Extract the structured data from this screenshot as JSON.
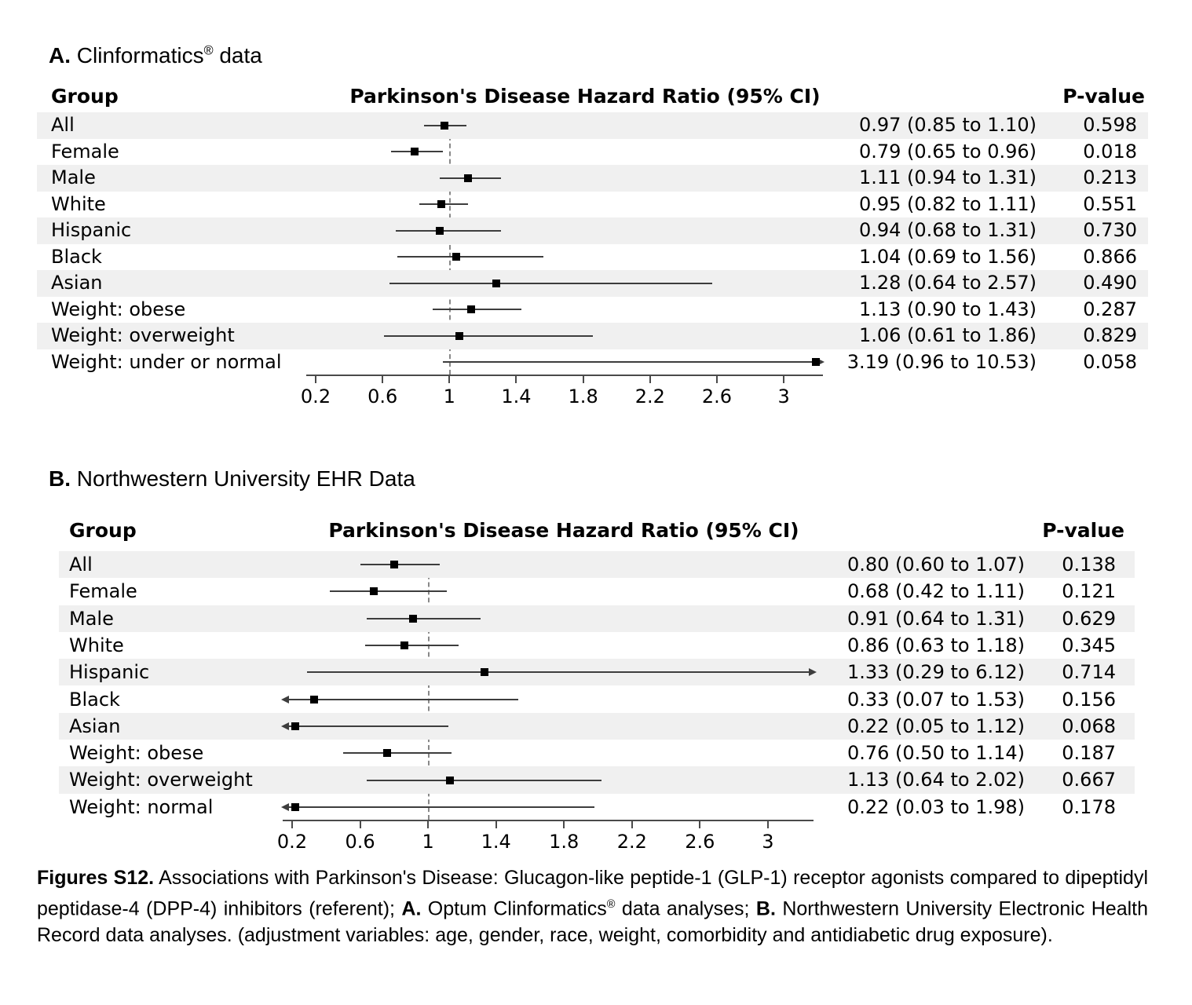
{
  "figure": {
    "panels": [
      {
        "id": "A",
        "title_segments": [
          {
            "t": "A.",
            "b": true
          },
          {
            "t": " Clinformatics",
            "b": false
          },
          {
            "t": "®",
            "b": false,
            "sup": true
          },
          {
            "t": " data",
            "b": false
          }
        ],
        "columns": {
          "group": "Group",
          "hr": "Parkinson's Disease Hazard Ratio (95% CI)",
          "p": "P-value"
        },
        "rows": [
          {
            "group": "All",
            "ci": "0.97 (0.85 to 1.10)",
            "p": "0.598",
            "est": 0.97,
            "lo": 0.85,
            "hi": 1.1
          },
          {
            "group": "Female",
            "ci": "0.79 (0.65 to 0.96)",
            "p": "0.018",
            "est": 0.79,
            "lo": 0.65,
            "hi": 0.96
          },
          {
            "group": "Male",
            "ci": "1.11 (0.94 to 1.31)",
            "p": "0.213",
            "est": 1.11,
            "lo": 0.94,
            "hi": 1.31
          },
          {
            "group": "White",
            "ci": "0.95 (0.82 to 1.11)",
            "p": "0.551",
            "est": 0.95,
            "lo": 0.82,
            "hi": 1.11
          },
          {
            "group": "Hispanic",
            "ci": "0.94 (0.68 to 1.31)",
            "p": "0.730",
            "est": 0.94,
            "lo": 0.68,
            "hi": 1.31
          },
          {
            "group": "Black",
            "ci": "1.04 (0.69 to 1.56)",
            "p": "0.866",
            "est": 1.04,
            "lo": 0.69,
            "hi": 1.56
          },
          {
            "group": "Asian",
            "ci": "1.28 (0.64 to 2.57)",
            "p": "0.490",
            "est": 1.28,
            "lo": 0.64,
            "hi": 2.57
          },
          {
            "group": "Weight: obese",
            "ci": "1.13 (0.90 to 1.43)",
            "p": "0.287",
            "est": 1.13,
            "lo": 0.9,
            "hi": 1.43
          },
          {
            "group": "Weight: overweight",
            "ci": "1.06 (0.61 to 1.86)",
            "p": "0.829",
            "est": 1.06,
            "lo": 0.61,
            "hi": 1.86
          },
          {
            "group": "Weight: under or normal",
            "ci": "3.19 (0.96 to 10.53)",
            "p": "0.058",
            "est": 3.19,
            "lo": 0.96,
            "hi": 10.53
          }
        ],
        "tick_labels": [
          "0.2",
          "0.6",
          "1",
          "1.4",
          "1.8",
          "2.2",
          "2.6",
          "3"
        ]
      },
      {
        "id": "B",
        "title_segments": [
          {
            "t": "B.",
            "b": true
          },
          {
            "t": " Northwestern University EHR Data",
            "b": false
          }
        ],
        "columns": {
          "group": "Group",
          "hr": "Parkinson's Disease Hazard Ratio (95% CI)",
          "p": "P-value"
        },
        "rows": [
          {
            "group": "All",
            "ci": "0.80 (0.60 to 1.07)",
            "p": "0.138",
            "est": 0.8,
            "lo": 0.6,
            "hi": 1.07
          },
          {
            "group": "Female",
            "ci": "0.68 (0.42 to 1.11)",
            "p": "0.121",
            "est": 0.68,
            "lo": 0.42,
            "hi": 1.11
          },
          {
            "group": "Male",
            "ci": "0.91 (0.64 to 1.31)",
            "p": "0.629",
            "est": 0.91,
            "lo": 0.64,
            "hi": 1.31
          },
          {
            "group": "White",
            "ci": "0.86 (0.63 to 1.18)",
            "p": "0.345",
            "est": 0.86,
            "lo": 0.63,
            "hi": 1.18
          },
          {
            "group": "Hispanic",
            "ci": "1.33 (0.29 to 6.12)",
            "p": "0.714",
            "est": 1.33,
            "lo": 0.29,
            "hi": 6.12
          },
          {
            "group": "Black",
            "ci": "0.33 (0.07 to 1.53)",
            "p": "0.156",
            "est": 0.33,
            "lo": 0.07,
            "hi": 1.53
          },
          {
            "group": "Asian",
            "ci": "0.22 (0.05 to 1.12)",
            "p": "0.068",
            "est": 0.22,
            "lo": 0.05,
            "hi": 1.12
          },
          {
            "group": "Weight: obese",
            "ci": "0.76 (0.50 to 1.14)",
            "p": "0.187",
            "est": 0.76,
            "lo": 0.5,
            "hi": 1.14
          },
          {
            "group": "Weight: overweight",
            "ci": "1.13 (0.64 to 2.02)",
            "p": "0.667",
            "est": 1.13,
            "lo": 0.64,
            "hi": 2.02
          },
          {
            "group": "Weight: normal",
            "ci": "0.22 (0.03 to 1.98)",
            "p": "0.178",
            "est": 0.22,
            "lo": 0.03,
            "hi": 1.98
          }
        ],
        "tick_labels": [
          "0.2",
          "0.6",
          "1",
          "1.4",
          "1.8",
          "2.2",
          "2.6",
          "3"
        ]
      }
    ],
    "caption_segments": [
      {
        "t": "Figures S12.",
        "b": true
      },
      {
        "t": " Associations with Parkinson's Disease: Glucagon-like peptide-1 (GLP-1) receptor agonists compared to dipeptidyl peptidase-4 (DPP-4) inhibitors (referent); ",
        "b": false
      },
      {
        "t": "A.",
        "b": true
      },
      {
        "t": " Optum Clinformatics",
        "b": false
      },
      {
        "t": "®",
        "b": false,
        "sup": true
      },
      {
        "t": " data analyses; ",
        "b": false
      },
      {
        "t": "B.",
        "b": true
      },
      {
        "t": " Northwestern University Electronic Health Record data analyses. (adjustment variables: age, gender, race, weight, comorbidity and antidiabetic drug exposure).",
        "b": false
      }
    ],
    "colors": {
      "stripe": "#f0f0f0",
      "marker": "#000000",
      "ci_line": "#3d3d3d",
      "axis": "#4a4a4a",
      "reference_line": "#888888"
    }
  },
  "chart_data": [
    {
      "type": "scatter",
      "subtype": "forest-plot",
      "title": "A. Clinformatics® data",
      "xlabel": "Parkinson's Disease Hazard Ratio (95% CI)",
      "x_ticks": [
        0.2,
        0.6,
        1,
        1.4,
        1.8,
        2.2,
        2.6,
        3
      ],
      "xlim": [
        0.15,
        3.35
      ],
      "reference_line_x": 1,
      "grid": false,
      "groups": [
        "All",
        "Female",
        "Male",
        "White",
        "Hispanic",
        "Black",
        "Asian",
        "Weight: obese",
        "Weight: overweight",
        "Weight: under or normal"
      ],
      "hazard_ratios": [
        0.97,
        0.79,
        1.11,
        0.95,
        0.94,
        1.04,
        1.28,
        1.13,
        1.06,
        3.19
      ],
      "ci_lower": [
        0.85,
        0.65,
        0.94,
        0.82,
        0.68,
        0.69,
        0.64,
        0.9,
        0.61,
        0.96
      ],
      "ci_upper": [
        1.1,
        0.96,
        1.31,
        1.11,
        1.31,
        1.56,
        2.57,
        1.43,
        1.86,
        10.53
      ],
      "p_values": [
        0.598,
        0.018,
        0.213,
        0.551,
        0.73,
        0.866,
        0.49,
        0.287,
        0.829,
        0.058
      ]
    },
    {
      "type": "scatter",
      "subtype": "forest-plot",
      "title": "B. Northwestern University EHR Data",
      "xlabel": "Parkinson's Disease Hazard Ratio (95% CI)",
      "x_ticks": [
        0.2,
        0.6,
        1,
        1.4,
        1.8,
        2.2,
        2.6,
        3
      ],
      "xlim": [
        0.15,
        3.35
      ],
      "reference_line_x": 1,
      "grid": false,
      "groups": [
        "All",
        "Female",
        "Male",
        "White",
        "Hispanic",
        "Black",
        "Asian",
        "Weight: obese",
        "Weight: overweight",
        "Weight: normal"
      ],
      "hazard_ratios": [
        0.8,
        0.68,
        0.91,
        0.86,
        1.33,
        0.33,
        0.22,
        0.76,
        1.13,
        0.22
      ],
      "ci_lower": [
        0.6,
        0.42,
        0.64,
        0.63,
        0.29,
        0.07,
        0.05,
        0.5,
        0.64,
        0.03
      ],
      "ci_upper": [
        1.07,
        1.11,
        1.31,
        1.18,
        6.12,
        1.53,
        1.12,
        1.14,
        2.02,
        1.98
      ],
      "p_values": [
        0.138,
        0.121,
        0.629,
        0.345,
        0.714,
        0.156,
        0.068,
        0.187,
        0.667,
        0.178
      ]
    }
  ]
}
